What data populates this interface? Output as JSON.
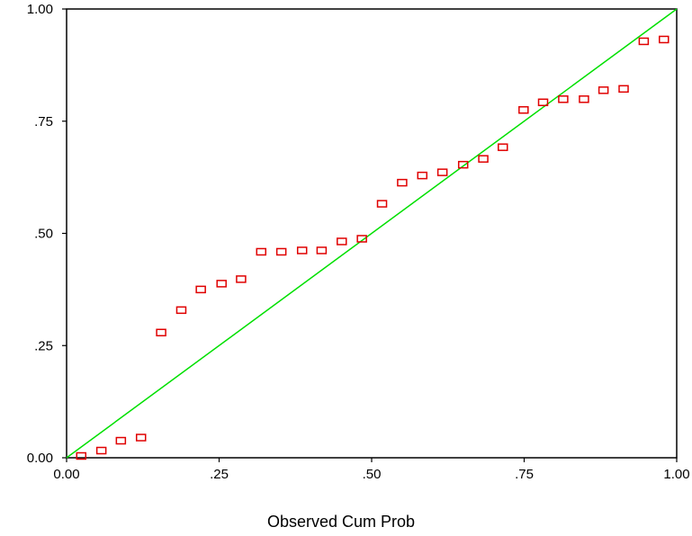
{
  "chart_data": {
    "type": "scatter",
    "xlabel": "Observed Cum Prob",
    "ylabel": "",
    "xlim": [
      0,
      1
    ],
    "ylim": [
      0,
      1
    ],
    "x_ticks": [
      "0.00",
      ".25",
      ".50",
      ".75",
      "1.00"
    ],
    "y_ticks": [
      "0.00",
      ".25",
      ".50",
      ".75",
      "1.00"
    ],
    "grid": false,
    "legend": "none",
    "series": [
      {
        "type": "scatter",
        "marker": "square",
        "color": "#e00000",
        "points": [
          [
            0.024,
            0.004
          ],
          [
            0.057,
            0.016
          ],
          [
            0.089,
            0.038
          ],
          [
            0.122,
            0.045
          ],
          [
            0.155,
            0.279
          ],
          [
            0.188,
            0.329
          ],
          [
            0.22,
            0.375
          ],
          [
            0.254,
            0.388
          ],
          [
            0.286,
            0.398
          ],
          [
            0.319,
            0.459
          ],
          [
            0.352,
            0.459
          ],
          [
            0.386,
            0.462
          ],
          [
            0.418,
            0.462
          ],
          [
            0.451,
            0.482
          ],
          [
            0.484,
            0.488
          ],
          [
            0.517,
            0.566
          ],
          [
            0.55,
            0.613
          ],
          [
            0.583,
            0.629
          ],
          [
            0.616,
            0.636
          ],
          [
            0.65,
            0.653
          ],
          [
            0.683,
            0.666
          ],
          [
            0.715,
            0.692
          ],
          [
            0.749,
            0.775
          ],
          [
            0.781,
            0.792
          ],
          [
            0.814,
            0.799
          ],
          [
            0.848,
            0.799
          ],
          [
            0.88,
            0.819
          ],
          [
            0.913,
            0.822
          ],
          [
            0.946,
            0.928
          ],
          [
            0.979,
            0.932
          ]
        ]
      },
      {
        "type": "line",
        "color": "#00e000",
        "points": [
          [
            0,
            0
          ],
          [
            1,
            1
          ]
        ]
      }
    ]
  }
}
